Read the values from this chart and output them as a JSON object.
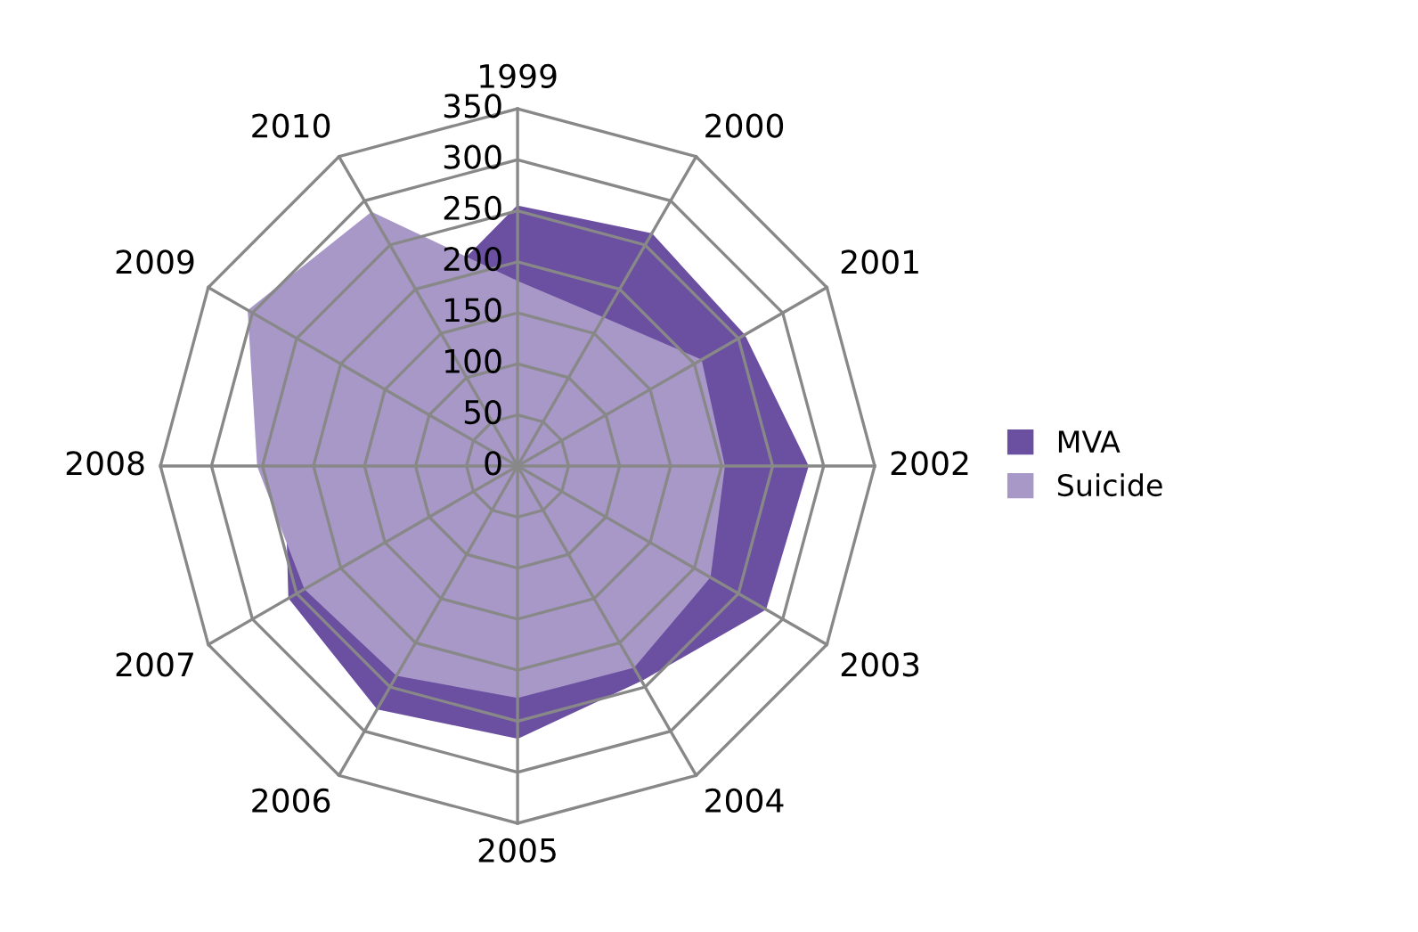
{
  "chart_data": {
    "type": "radar",
    "categories": [
      "1999",
      "2000",
      "2001",
      "2002",
      "2003",
      "2004",
      "2005",
      "2006",
      "2007",
      "2008",
      "2009",
      "2010"
    ],
    "series": [
      {
        "name": "MVA",
        "color": "#6b4fa0",
        "values": [
          254,
          262,
          256,
          284,
          280,
          242,
          266,
          274,
          258,
          227,
          null,
          185
        ]
      },
      {
        "name": "Suicide",
        "color": "#a898c8",
        "values": [
          180,
          167,
          207,
          202,
          217,
          227,
          226,
          236,
          240,
          254,
          304,
          286
        ]
      }
    ],
    "ylim": [
      0,
      350
    ],
    "yticks": [
      0,
      50,
      100,
      150,
      200,
      250,
      300,
      350
    ],
    "grid": true,
    "legend": "right"
  }
}
